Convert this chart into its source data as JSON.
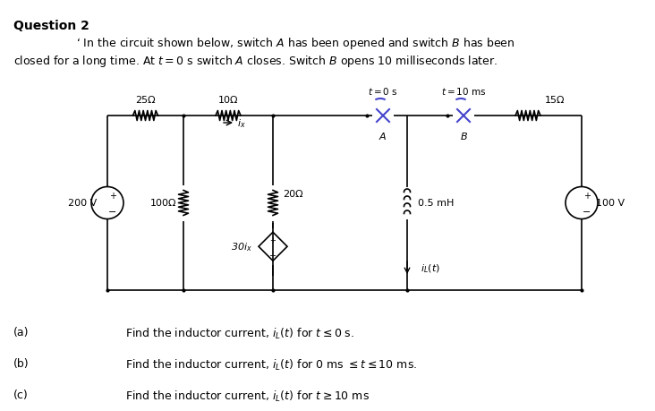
{
  "title": "Question 2",
  "intro_line1": "‘ In the circuit shown below, switch $A$ has been opened and switch $B$ has been",
  "intro_line2": "closed for a long time. At $t = 0$ s switch $A$ closes. Switch $B$ opens 10 milliseconds later.",
  "part_a": "(a)",
  "part_b": "(b)",
  "part_c": "(c)",
  "text_a": "Find the inductor current, $i_L(t)$ for $t \\leq 0$ s.",
  "text_b": "Find the inductor current, $i_L(t)$ for $0$ ms $\\leq t \\leq 10$ ms.",
  "text_c": "Find the inductor current, $i_L(t)$ for $t \\geq 10$ ms",
  "bg_color": "#ffffff",
  "text_color": "#000000",
  "circuit_color": "#000000",
  "switch_color_A": "#4444cc",
  "switch_color_B": "#4444cc",
  "R1": "25Ω",
  "R2": "10Ω",
  "R3": "20Ω",
  "R4": "100Ω",
  "R5": "15Ω",
  "L1": "0.5 mH",
  "V1": "200 V",
  "V2": "100 V",
  "dep_source": "30$i_x$",
  "switch_A_label": "$t = 0$ s",
  "switch_B_label": "$t = 10$ ms",
  "switch_A_name": "$A$",
  "switch_B_name": "$B$",
  "ix_label": "$i_x$",
  "iL_label": "$i_L(t)$"
}
